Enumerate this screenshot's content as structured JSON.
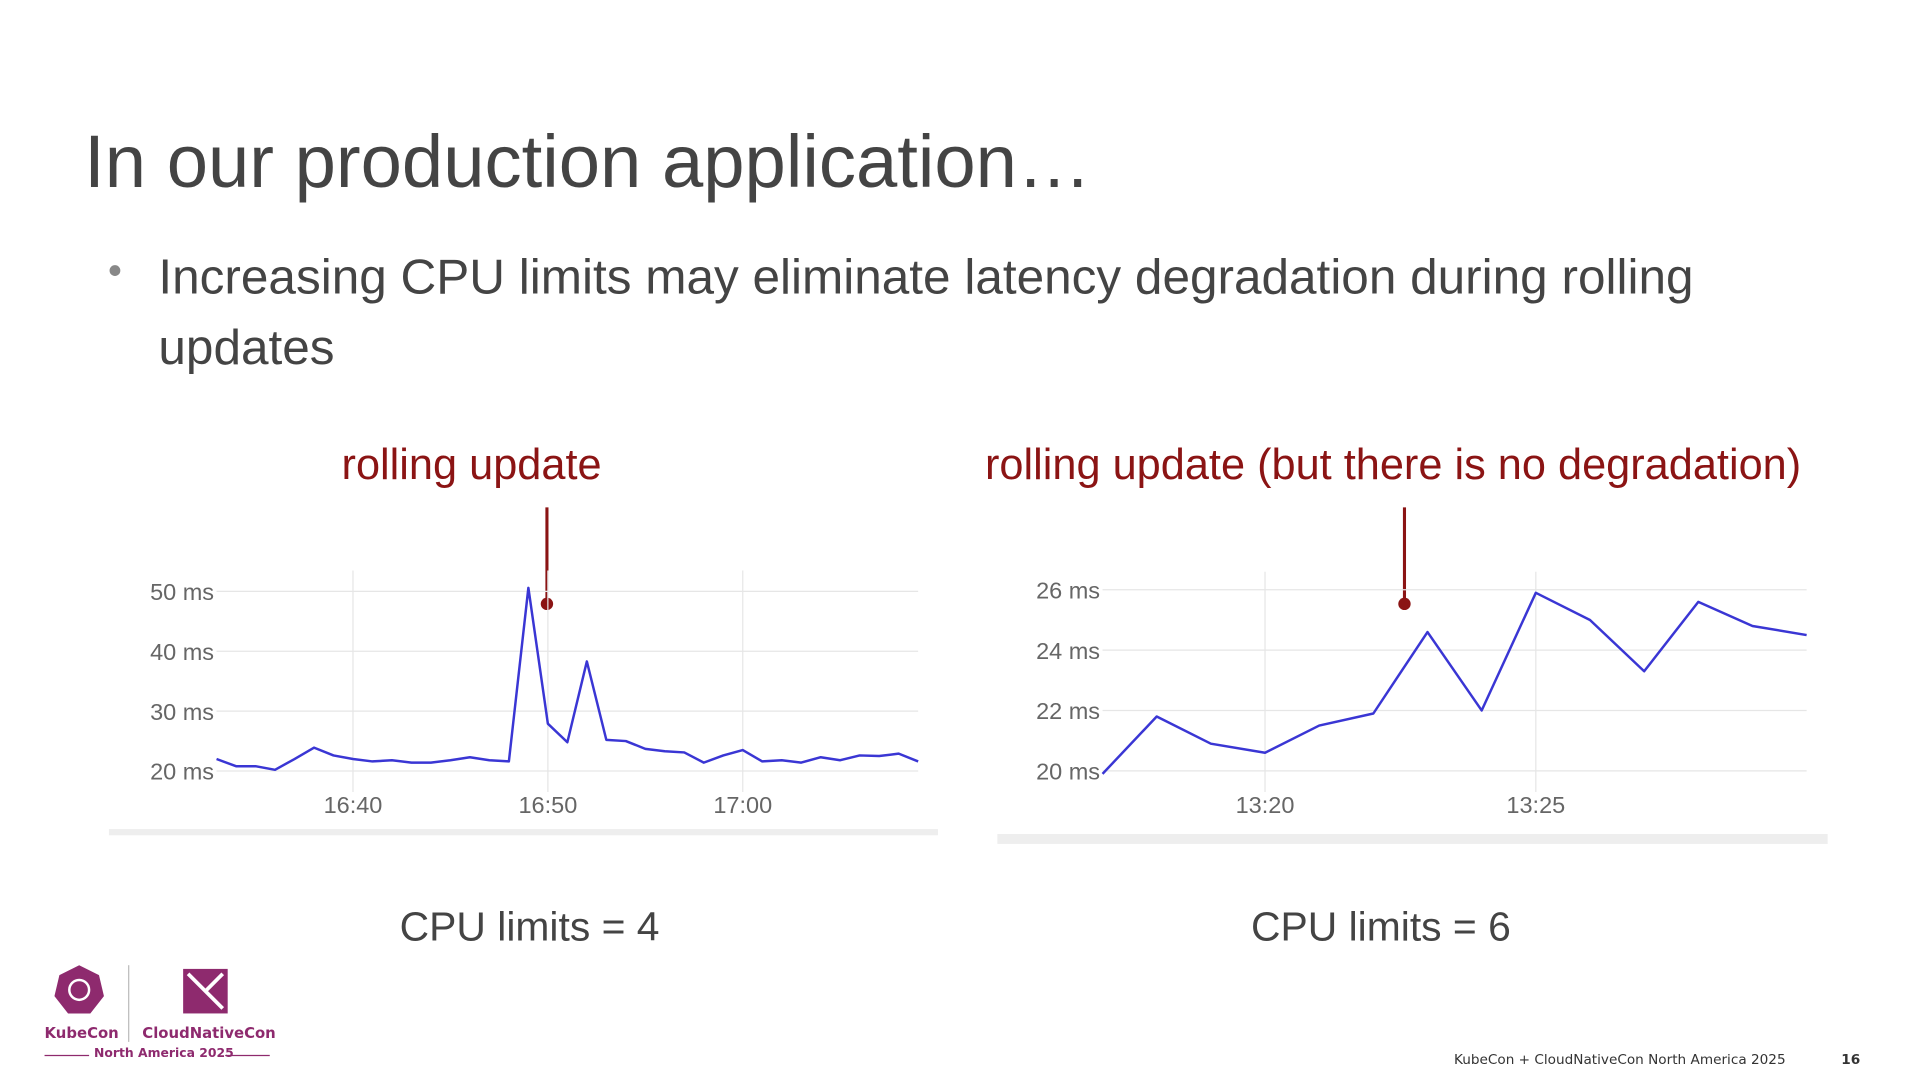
{
  "slide": {
    "title": "In our production application…",
    "bullet": "Increasing CPU limits may eliminate latency degradation during rolling updates",
    "captions": [
      "CPU limits = 4",
      "CPU limits = 6"
    ],
    "logo": {
      "left": "KubeCon",
      "right": "CloudNativeCon",
      "sub": "North America 2025"
    },
    "footer": "KubeCon + CloudNativeCon North America 2025",
    "page": "16"
  },
  "chart_data": [
    {
      "type": "line",
      "annotation": "rolling update",
      "x": [
        "16:33",
        "16:34",
        "16:35",
        "16:36",
        "16:37",
        "16:38",
        "16:39",
        "16:40",
        "16:41",
        "16:42",
        "16:43",
        "16:44",
        "16:45",
        "16:46",
        "16:47",
        "16:48",
        "16:49",
        "16:50",
        "16:51",
        "16:52",
        "16:53",
        "16:54",
        "16:55",
        "16:56",
        "16:57",
        "16:58",
        "16:59",
        "17:00",
        "17:01",
        "17:02",
        "17:03",
        "17:04",
        "17:05",
        "17:06",
        "17:07",
        "17:08",
        "17:09"
      ],
      "series": [
        {
          "color": "#3a36d4",
          "values": [
            22,
            20.8,
            20.8,
            20.2,
            22,
            23.9,
            22.6,
            22,
            21.6,
            21.8,
            21.4,
            21.4,
            21.8,
            22.3,
            21.8,
            21.6,
            50.6,
            27.9,
            24.8,
            38.3,
            25.2,
            25,
            23.7,
            23.3,
            23.1,
            21.4,
            22.6,
            23.5,
            21.6,
            21.8,
            21.4,
            22.3,
            21.8,
            22.6,
            22.5,
            22.9,
            21.6
          ]
        }
      ],
      "xlim": [
        "16:33",
        "17:09"
      ],
      "xticks": [
        "16:40",
        "16:50",
        "17:00"
      ],
      "ylim": [
        16.5,
        53.5
      ],
      "yticks": [
        {
          "value": 20,
          "label": "20 ms"
        },
        {
          "value": 30,
          "label": "30 ms"
        },
        {
          "value": 40,
          "label": "40 ms"
        },
        {
          "value": 50,
          "label": "50 ms"
        }
      ],
      "grid": true
    },
    {
      "type": "line",
      "annotation": "rolling update (but there is no degradation)",
      "x": [
        "13:17",
        "13:18",
        "13:19",
        "13:20",
        "13:21",
        "13:22",
        "13:23",
        "13:24",
        "13:25",
        "13:26",
        "13:27",
        "13:28",
        "13:29",
        "13:30"
      ],
      "series": [
        {
          "color": "#3a36d4",
          "values": [
            19.9,
            21.8,
            20.9,
            20.6,
            21.5,
            21.9,
            24.6,
            22,
            25.9,
            25,
            23.3,
            25.6,
            24.8,
            24.5
          ]
        }
      ],
      "xlim": [
        "13:17",
        "13:30"
      ],
      "xticks": [
        "13:20",
        "13:25"
      ],
      "ylim": [
        19.3,
        26.6
      ],
      "yticks": [
        {
          "value": 20,
          "label": "20 ms"
        },
        {
          "value": 22,
          "label": "22 ms"
        },
        {
          "value": 24,
          "label": "24 ms"
        },
        {
          "value": 26,
          "label": "26 ms"
        }
      ],
      "grid": true
    }
  ]
}
